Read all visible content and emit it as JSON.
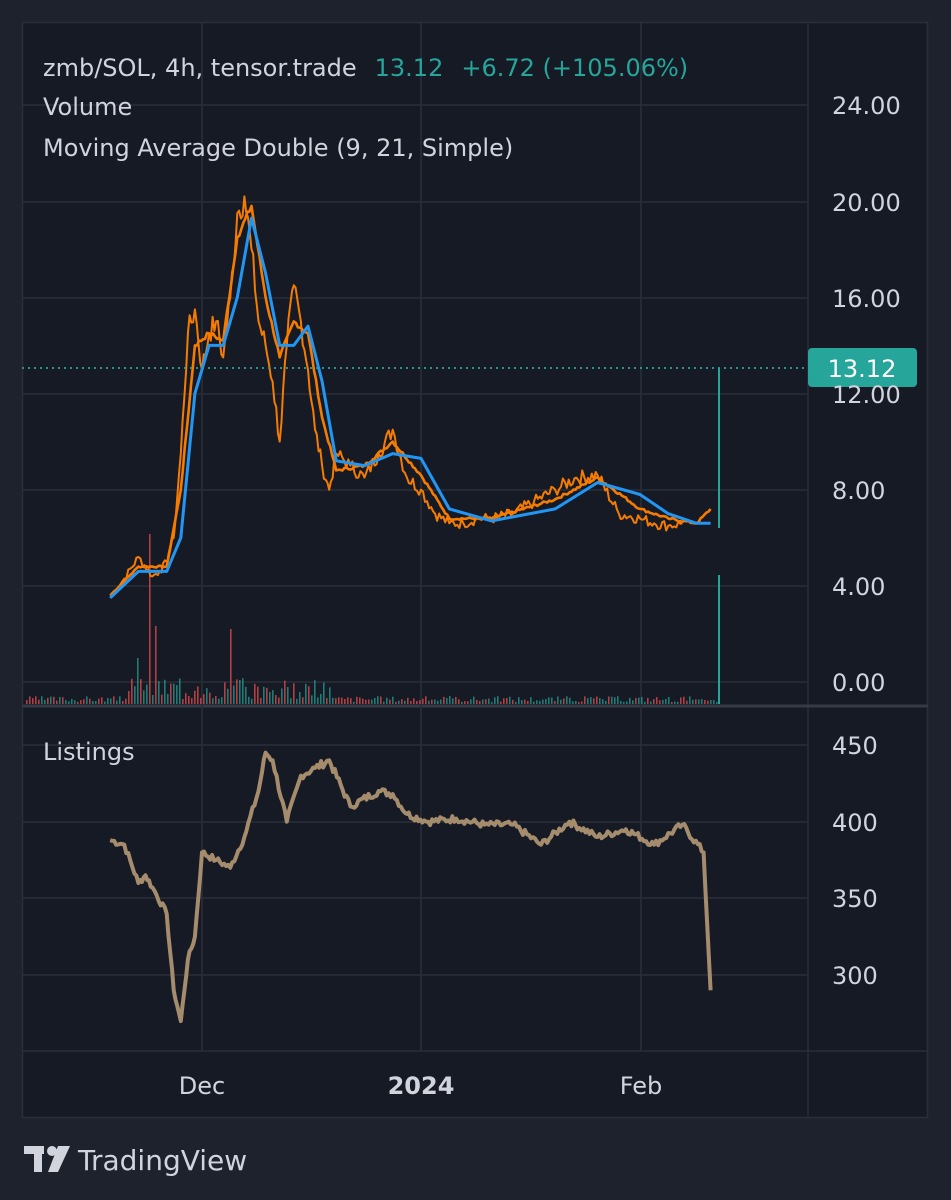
{
  "header": {
    "symbol": "zmb/SOL, 4h, tensor.trade",
    "last": "13.12",
    "change": "+6.72 (+105.06%)",
    "volume_label": "Volume",
    "ma_label": "Moving Average Double (9, 21, Simple)"
  },
  "price_badge": "13.12",
  "listings_label": "Listings",
  "branding": "TradingView",
  "colors": {
    "background": "#1e222d",
    "price_line": "#f57c00",
    "ma_fast": "#f57c00",
    "ma_slow": "#2196f3",
    "volume": "#26a69a",
    "accent": "#26a69a",
    "listings_line": "#a58c6c"
  },
  "chart_data": [
    {
      "type": "line",
      "title": "zmb/SOL, 4h, tensor.trade",
      "y_ticks": [
        "24.00",
        "20.00",
        "16.00",
        "12.00",
        "8.00",
        "4.00",
        "0.00"
      ],
      "ylim": [
        0,
        24
      ],
      "x_ticks": [
        "Dec",
        "2024",
        "Feb"
      ],
      "grid": true,
      "last_value": 13.12,
      "series": [
        {
          "name": "zmb/SOL",
          "x": [
            "Nov 18",
            "Nov 20",
            "Nov 22",
            "Nov 24",
            "Nov 25",
            "Nov 26",
            "Nov 27",
            "Nov 28",
            "Nov 29",
            "Nov 30",
            "Dec 1",
            "Dec 2",
            "Dec 3",
            "Dec 4",
            "Dec 5",
            "Dec 6",
            "Dec 7",
            "Dec 8",
            "Dec 9",
            "Dec 10",
            "Dec 11",
            "Dec 12",
            "Dec 13",
            "Dec 14",
            "Dec 15",
            "Dec 16",
            "Dec 17",
            "Dec 18",
            "Dec 19",
            "Dec 20",
            "Dec 22",
            "Dec 24",
            "Dec 26",
            "Dec 28",
            "Dec 30",
            "Jan 1",
            "Jan 3",
            "Jan 5",
            "Jan 7",
            "Jan 9",
            "Jan 11",
            "Jan 14",
            "Jan 17",
            "Jan 20",
            "Jan 23",
            "Jan 26",
            "Jan 29",
            "Feb 1",
            "Feb 3",
            "Feb 5",
            "Feb 7",
            "Feb 9",
            "Feb 10",
            "Feb 11"
          ],
          "values": [
            3.5,
            4.3,
            5.2,
            4.4,
            4.6,
            5.0,
            6.0,
            9.5,
            14.5,
            15.5,
            13.0,
            14.5,
            15.0,
            13.5,
            16.0,
            19.5,
            20.2,
            18.0,
            15.0,
            14.0,
            12.5,
            10.0,
            14.0,
            16.5,
            15.0,
            13.0,
            10.5,
            9.0,
            8.0,
            9.5,
            9.0,
            8.5,
            9.5,
            10.5,
            8.5,
            8.0,
            7.0,
            6.6,
            6.6,
            6.8,
            6.8,
            7.0,
            7.5,
            8.0,
            8.5,
            8.6,
            7.0,
            6.8,
            6.6,
            6.5,
            6.6,
            13.12,
            13.12,
            13.12
          ]
        },
        {
          "name": "MA 9",
          "x": [
            "Nov 18",
            "Nov 22",
            "Nov 26",
            "Nov 28",
            "Nov 30",
            "Dec 2",
            "Dec 4",
            "Dec 6",
            "Dec 8",
            "Dec 10",
            "Dec 12",
            "Dec 14",
            "Dec 16",
            "Dec 18",
            "Dec 20",
            "Dec 24",
            "Dec 28",
            "Jan 1",
            "Jan 5",
            "Jan 11",
            "Jan 20",
            "Jan 26",
            "Feb 1",
            "Feb 5",
            "Feb 9",
            "Feb 11"
          ],
          "values": [
            3.6,
            4.8,
            4.8,
            8.0,
            14.0,
            14.5,
            14.2,
            18.5,
            19.8,
            16.0,
            13.5,
            15.0,
            14.5,
            11.0,
            8.8,
            9.0,
            10.0,
            8.6,
            6.8,
            6.8,
            7.6,
            8.5,
            7.2,
            6.8,
            6.6,
            7.2
          ]
        },
        {
          "name": "MA 21",
          "x": [
            "Nov 18",
            "Nov 22",
            "Nov 26",
            "Nov 28",
            "Nov 30",
            "Dec 2",
            "Dec 4",
            "Dec 6",
            "Dec 8",
            "Dec 10",
            "Dec 12",
            "Dec 14",
            "Dec 16",
            "Dec 18",
            "Dec 20",
            "Dec 24",
            "Dec 28",
            "Jan 1",
            "Jan 5",
            "Jan 11",
            "Jan 20",
            "Jan 26",
            "Feb 1",
            "Feb 5",
            "Feb 9",
            "Feb 11"
          ],
          "values": [
            3.5,
            4.6,
            4.6,
            6.0,
            12.0,
            14.0,
            14.0,
            16.0,
            19.3,
            17.0,
            14.0,
            14.0,
            14.8,
            12.5,
            9.2,
            9.0,
            9.5,
            9.3,
            7.2,
            6.7,
            7.2,
            8.3,
            7.8,
            7.0,
            6.6,
            6.6
          ]
        }
      ]
    },
    {
      "type": "bar",
      "title": "Volume",
      "note": "relative volume, peaks near Nov 28 and Feb 11"
    },
    {
      "type": "line",
      "title": "Listings",
      "y_ticks": [
        "450",
        "400",
        "350",
        "300"
      ],
      "ylim": [
        260,
        465
      ],
      "x_ticks": [
        "Dec",
        "2024",
        "Feb"
      ],
      "series": [
        {
          "name": "Listings",
          "x": [
            "Nov 18",
            "Nov 20",
            "Nov 22",
            "Nov 23",
            "Nov 24",
            "Nov 26",
            "Nov 27",
            "Nov 28",
            "Nov 29",
            "Nov 30",
            "Dec 1",
            "Dec 3",
            "Dec 5",
            "Dec 7",
            "Dec 9",
            "Dec 10",
            "Dec 11",
            "Dec 13",
            "Dec 15",
            "Dec 17",
            "Dec 19",
            "Dec 22",
            "Dec 26",
            "Dec 28",
            "Dec 30",
            "Jan 2",
            "Jan 6",
            "Jan 10",
            "Jan 14",
            "Jan 18",
            "Jan 22",
            "Jan 26",
            "Jan 30",
            "Feb 3",
            "Feb 7",
            "Feb 10",
            "Feb 11"
          ],
          "values": [
            388,
            385,
            360,
            365,
            357,
            340,
            290,
            270,
            310,
            325,
            380,
            375,
            370,
            390,
            420,
            445,
            440,
            400,
            430,
            435,
            440,
            410,
            420,
            418,
            405,
            400,
            402,
            398,
            398,
            385,
            400,
            390,
            395,
            385,
            398,
            380,
            290
          ]
        }
      ]
    }
  ]
}
